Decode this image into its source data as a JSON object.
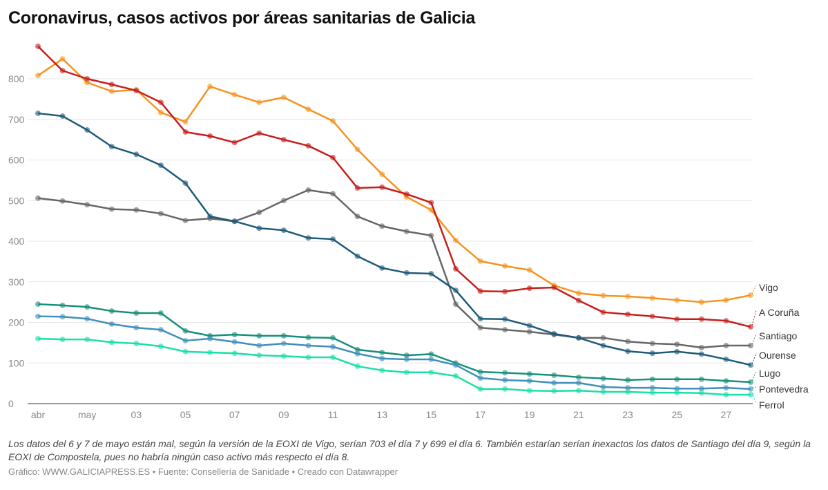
{
  "title": "Coronavirus, casos activos por áreas sanitarias de Galicia",
  "note": "Los datos del 6 y 7 de mayo están mal, según la versión de la EOXI de Vigo, serían 703 el día 7 y 699 el día 6. También estarían serían inexactos los datos de Santiago del día 9, según la EOXI de Compostela, pues no habría ningún caso activo más respecto el día 8.",
  "footer": "Gráfico: WWW.GALICIAPRESS.ES • Fuente: Consellería de Sanidade • Creado con Datawrapper",
  "chart_data": {
    "type": "line",
    "title": "Coronavirus, casos activos por áreas sanitarias de Galicia",
    "xlabel": "",
    "ylabel": "",
    "ylim": [
      0,
      800
    ],
    "yticks": [
      "0",
      "100",
      "200",
      "300",
      "400",
      "500",
      "600",
      "700",
      "800"
    ],
    "xticks": [
      {
        "x": "04-29",
        "label": "abr"
      },
      {
        "x": "05-01",
        "label": "may"
      },
      {
        "x": "05-03",
        "label": "03"
      },
      {
        "x": "05-05",
        "label": "05"
      },
      {
        "x": "05-07",
        "label": "07"
      },
      {
        "x": "05-09",
        "label": "09"
      },
      {
        "x": "05-11",
        "label": "11"
      },
      {
        "x": "05-13",
        "label": "13"
      },
      {
        "x": "05-15",
        "label": "15"
      },
      {
        "x": "05-17",
        "label": "17"
      },
      {
        "x": "05-19",
        "label": "19"
      },
      {
        "x": "05-21",
        "label": "21"
      },
      {
        "x": "05-23",
        "label": "23"
      },
      {
        "x": "05-25",
        "label": "25"
      },
      {
        "x": "05-27",
        "label": "27"
      }
    ],
    "grid": "horizontal",
    "legend": "direct labels at right",
    "x": [
      "04-29",
      "04-30",
      "05-01",
      "05-02",
      "05-03",
      "05-04",
      "05-05",
      "05-06",
      "05-07",
      "05-08",
      "05-09",
      "05-10",
      "05-11",
      "05-12",
      "05-13",
      "05-14",
      "05-15",
      "05-16",
      "05-17",
      "05-18",
      "05-19",
      "05-20",
      "05-21",
      "05-22",
      "05-23",
      "05-24",
      "05-25",
      "05-26",
      "05-27",
      "05-28"
    ],
    "series": [
      {
        "name": "Vigo",
        "color": "#f7931e",
        "values": [
          808,
          849,
          791,
          769,
          773,
          717,
          694,
          781,
          761,
          742,
          754,
          725,
          696,
          626,
          565,
          509,
          477,
          402,
          351,
          339,
          329,
          291,
          272,
          266,
          264,
          260,
          255,
          250,
          255,
          267
        ]
      },
      {
        "name": "A Coruña",
        "color": "#c71e1d",
        "values": [
          880,
          820,
          800,
          786,
          771,
          742,
          669,
          659,
          643,
          666,
          650,
          635,
          606,
          531,
          533,
          516,
          495,
          332,
          277,
          276,
          284,
          286,
          254,
          225,
          220,
          215,
          208,
          208,
          204,
          189
        ]
      },
      {
        "name": "Santiago",
        "color": "#666666",
        "values": [
          506,
          499,
          490,
          479,
          477,
          468,
          451,
          456,
          449,
          471,
          500,
          526,
          517,
          461,
          437,
          424,
          414,
          245,
          187,
          182,
          177,
          170,
          162,
          162,
          153,
          148,
          146,
          138,
          143,
          143
        ]
      },
      {
        "name": "Ourense",
        "color": "#1d5a79",
        "values": [
          715,
          708,
          674,
          633,
          614,
          587,
          543,
          461,
          449,
          432,
          427,
          408,
          405,
          363,
          334,
          322,
          320,
          279,
          209,
          208,
          192,
          172,
          162,
          143,
          129,
          124,
          128,
          122,
          109,
          95
        ]
      },
      {
        "name": "Lugo",
        "color": "#15907a",
        "values": [
          245,
          242,
          238,
          228,
          223,
          223,
          179,
          167,
          170,
          167,
          167,
          163,
          162,
          133,
          126,
          119,
          122,
          100,
          78,
          76,
          73,
          70,
          65,
          62,
          58,
          60,
          60,
          60,
          56,
          53
        ]
      },
      {
        "name": "Pontevedra",
        "color": "#3f8fbc",
        "values": [
          215,
          214,
          209,
          196,
          187,
          182,
          155,
          160,
          152,
          143,
          148,
          143,
          140,
          123,
          111,
          109,
          109,
          95,
          63,
          58,
          56,
          51,
          51,
          41,
          39,
          39,
          37,
          37,
          39,
          36
        ]
      },
      {
        "name": "Ferrol",
        "color": "#18e0a6",
        "values": [
          160,
          158,
          158,
          151,
          148,
          141,
          128,
          126,
          124,
          119,
          117,
          114,
          114,
          92,
          82,
          77,
          77,
          68,
          36,
          36,
          32,
          31,
          32,
          29,
          29,
          27,
          27,
          26,
          22,
          22
        ]
      }
    ]
  }
}
